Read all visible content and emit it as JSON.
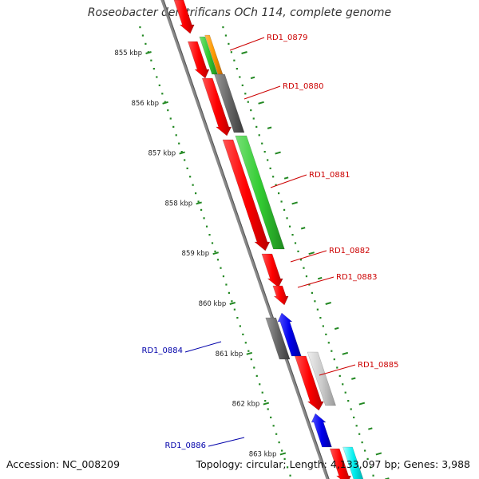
{
  "title": "Roseobacter denitrificans OCh 114, complete genome",
  "accession": "Accession: NC_008209",
  "summary": "Topology: circular; Length: 4,133,097 bp; Genes: 3,988",
  "colors": {
    "forward_label": "#cc0000",
    "reverse_label": "#0000aa",
    "ruler": "#228822",
    "backbone": "#888888"
  },
  "ruler_ticks": [
    {
      "kbp": 855,
      "label": "855 kbp"
    },
    {
      "kbp": 856,
      "label": "856 kbp"
    },
    {
      "kbp": 857,
      "label": "857 kbp"
    },
    {
      "kbp": 858,
      "label": "858 kbp"
    },
    {
      "kbp": 859,
      "label": "859 kbp"
    },
    {
      "kbp": 860,
      "label": "860 kbp"
    },
    {
      "kbp": 861,
      "label": "861 kbp"
    },
    {
      "kbp": 862,
      "label": "862 kbp"
    },
    {
      "kbp": 863,
      "label": "863 kbp"
    }
  ],
  "gene_labels": [
    {
      "name": "RD1_0879",
      "strand": "forward"
    },
    {
      "name": "RD1_0880",
      "strand": "forward"
    },
    {
      "name": "RD1_0881",
      "strand": "forward"
    },
    {
      "name": "RD1_0882",
      "strand": "forward"
    },
    {
      "name": "RD1_0883",
      "strand": "forward"
    },
    {
      "name": "RD1_0884",
      "strand": "reverse"
    },
    {
      "name": "RD1_0885",
      "strand": "forward"
    },
    {
      "name": "RD1_0886",
      "strand": "reverse"
    }
  ]
}
